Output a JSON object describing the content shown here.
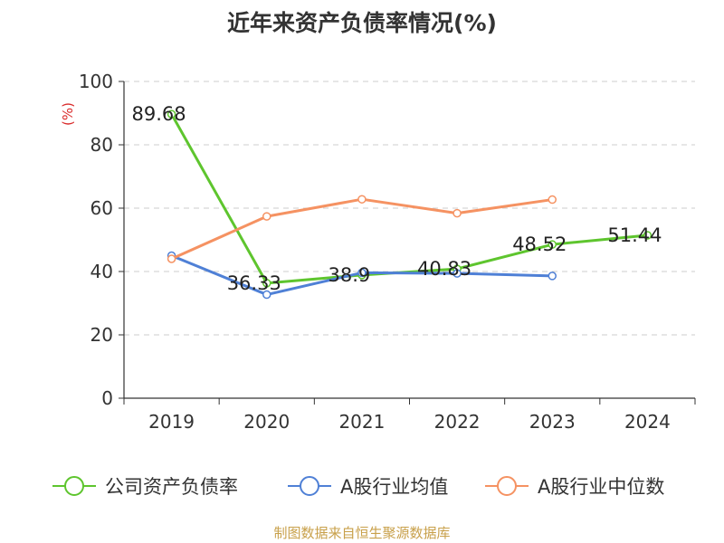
{
  "chart_data": {
    "type": "line",
    "title": "近年来资产负债率情况(%)",
    "ylabel": "(%)",
    "xlabel": "",
    "categories": [
      "2019",
      "2020",
      "2021",
      "2022",
      "2023",
      "2024"
    ],
    "ylim": [
      0,
      100
    ],
    "yticks": [
      0,
      20,
      40,
      60,
      80,
      100
    ],
    "grid": true,
    "legend_position": "bottom",
    "series": [
      {
        "name": "公司资产负债率",
        "color": "#5ec52e",
        "values": [
          89.68,
          36.33,
          38.9,
          40.83,
          48.52,
          51.44
        ],
        "labels": [
          "89.68",
          "36.33",
          "38.9",
          "40.83",
          "48.52",
          "51.44"
        ]
      },
      {
        "name": "A股行业均值",
        "color": "#4f80d6",
        "values": [
          45.0,
          32.7,
          39.6,
          39.4,
          38.6,
          null
        ]
      },
      {
        "name": "A股行业中位数",
        "color": "#f59262",
        "values": [
          44.0,
          57.4,
          62.8,
          58.4,
          62.7,
          null
        ]
      }
    ]
  },
  "footer": {
    "source": "制图数据来自恒生聚源数据库"
  }
}
